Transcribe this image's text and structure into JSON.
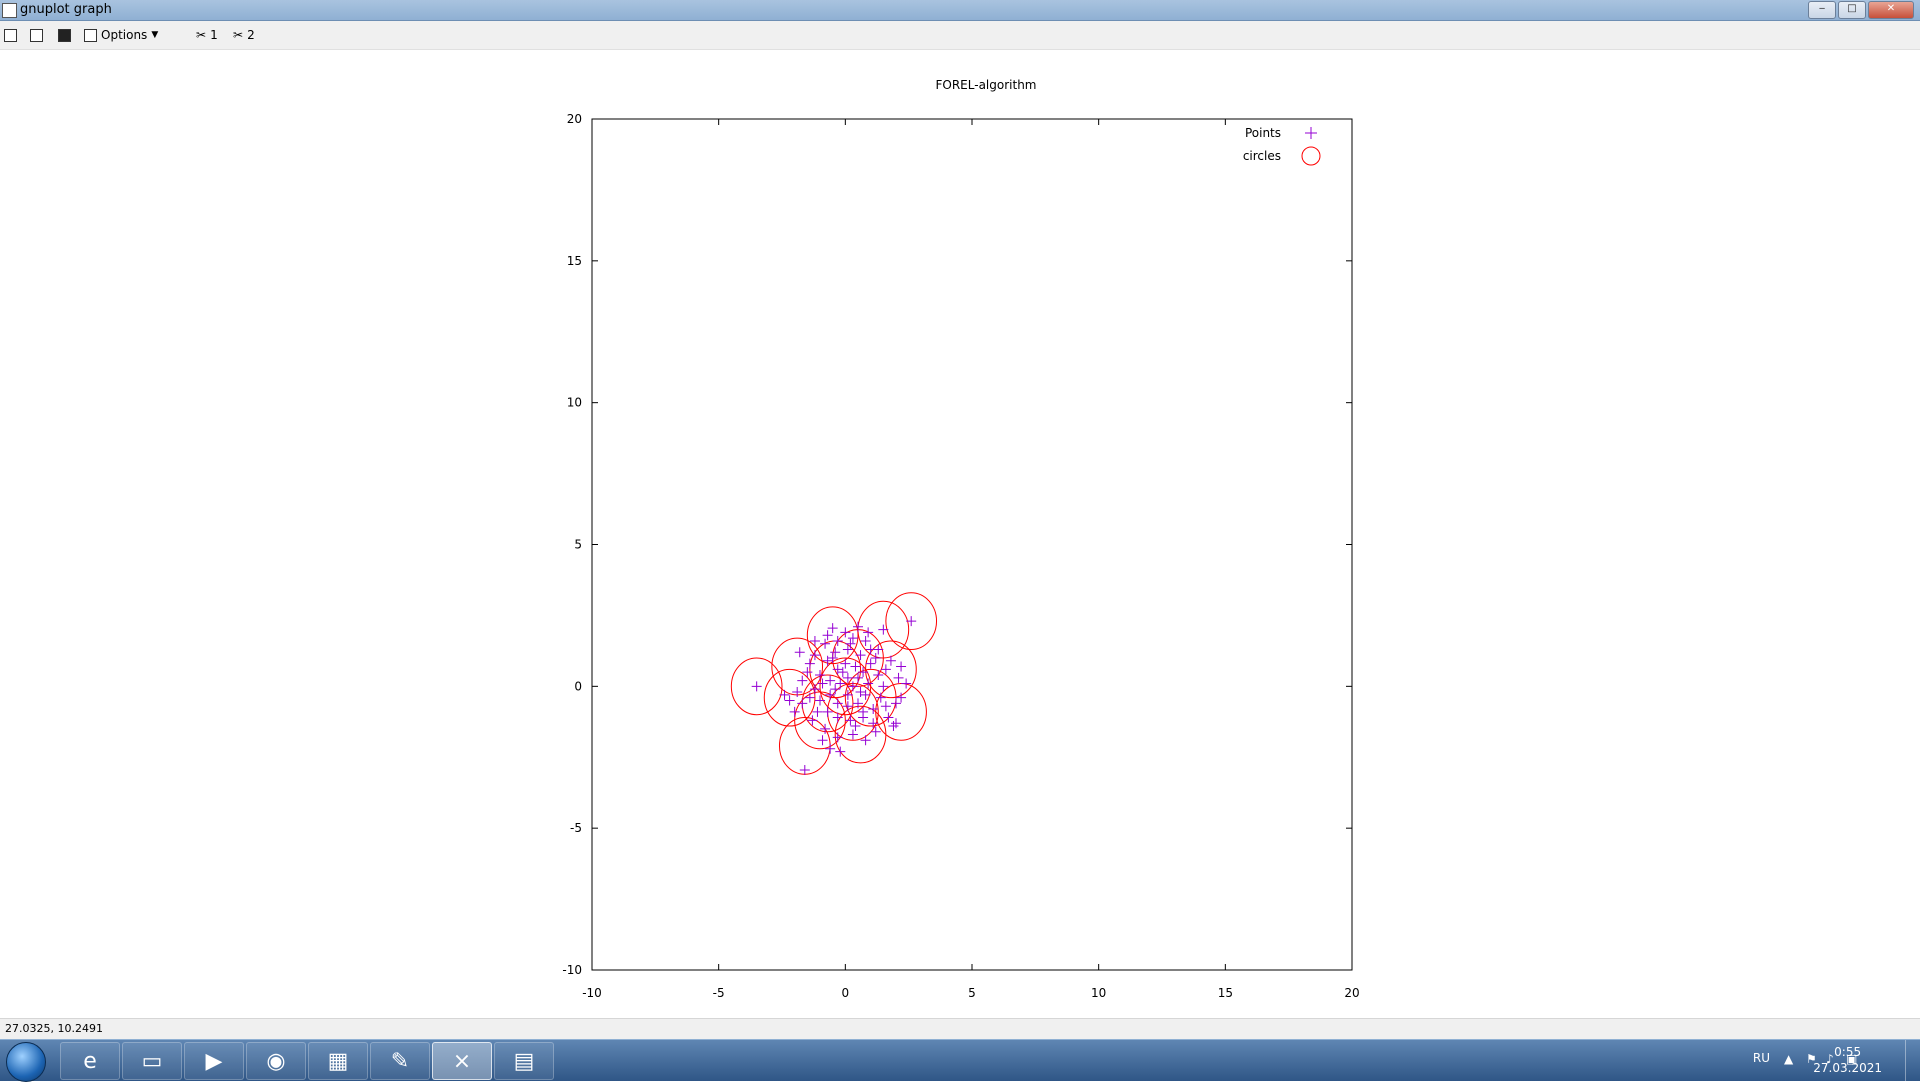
{
  "window": {
    "title": "gnuplot graph",
    "btn_min": "‒",
    "btn_max": "□",
    "btn_close": "✕"
  },
  "toolbar": {
    "options_label": "Options",
    "plot1_label": "1",
    "plot2_label": "2"
  },
  "status": {
    "coords": "27.0325,  10.2491"
  },
  "taskbar": {
    "apps": [
      "start",
      "internet-explorer",
      "file-explorer",
      "media-player",
      "chrome",
      "winrar",
      "editor",
      "gnuplot",
      "console"
    ],
    "lang": "RU",
    "time": "0:55",
    "date": "27.03.2021"
  },
  "chart_data": {
    "type": "scatter",
    "title": "FOREL-algorithm",
    "xlabel": "",
    "ylabel": "",
    "xlim": [
      -10,
      20
    ],
    "ylim": [
      -10,
      20
    ],
    "xticks": [
      -10,
      -5,
      0,
      5,
      10,
      15,
      20
    ],
    "yticks": [
      -10,
      -5,
      0,
      5,
      10,
      15,
      20
    ],
    "grid": false,
    "legend_position": "top-right",
    "series": [
      {
        "name": "Points",
        "marker": "plus",
        "color": "#9400d3",
        "points": [
          [
            -3.5,
            0.0
          ],
          [
            -1.6,
            -2.95
          ],
          [
            2.6,
            2.3
          ],
          [
            1.5,
            2.0
          ],
          [
            -0.5,
            2.05
          ],
          [
            0.0,
            1.9
          ],
          [
            -2.2,
            -0.5
          ],
          [
            -2.4,
            -0.3
          ],
          [
            -1.7,
            0.2
          ],
          [
            -1.4,
            0.8
          ],
          [
            -1.2,
            1.1
          ],
          [
            -0.8,
            1.5
          ],
          [
            -0.3,
            1.6
          ],
          [
            0.3,
            1.7
          ],
          [
            0.8,
            1.6
          ],
          [
            1.3,
            1.3
          ],
          [
            1.8,
            0.9
          ],
          [
            2.2,
            0.7
          ],
          [
            2.4,
            0.1
          ],
          [
            2.2,
            -0.4
          ],
          [
            2.0,
            -0.6
          ],
          [
            1.7,
            -1.1
          ],
          [
            1.2,
            -1.6
          ],
          [
            0.8,
            -1.9
          ],
          [
            0.3,
            -1.7
          ],
          [
            -0.3,
            -1.8
          ],
          [
            -0.8,
            -1.5
          ],
          [
            -1.3,
            -1.2
          ],
          [
            -1.7,
            -0.6
          ],
          [
            -1.9,
            -0.2
          ],
          [
            -1.0,
            0.4
          ],
          [
            -0.7,
            0.9
          ],
          [
            -0.4,
            1.2
          ],
          [
            0.1,
            1.3
          ],
          [
            0.6,
            1.1
          ],
          [
            1.0,
            0.8
          ],
          [
            1.3,
            0.4
          ],
          [
            1.5,
            0.0
          ],
          [
            1.4,
            -0.4
          ],
          [
            1.1,
            -0.8
          ],
          [
            0.7,
            -1.1
          ],
          [
            0.2,
            -1.2
          ],
          [
            -0.3,
            -1.1
          ],
          [
            -0.7,
            -0.9
          ],
          [
            -1.0,
            -0.5
          ],
          [
            -1.2,
            -0.1
          ],
          [
            -0.6,
            0.2
          ],
          [
            -0.3,
            0.6
          ],
          [
            0.0,
            0.8
          ],
          [
            0.4,
            0.7
          ],
          [
            0.7,
            0.5
          ],
          [
            0.9,
            0.1
          ],
          [
            0.8,
            -0.3
          ],
          [
            0.5,
            -0.6
          ],
          [
            0.1,
            -0.7
          ],
          [
            -0.3,
            -0.6
          ],
          [
            -0.6,
            -0.3
          ],
          [
            -0.2,
            0.1
          ],
          [
            0.1,
            0.3
          ],
          [
            0.3,
            0.0
          ],
          [
            0.1,
            -0.3
          ],
          [
            -0.4,
            -0.1
          ],
          [
            0.5,
            0.3
          ],
          [
            -0.1,
            0.5
          ],
          [
            -0.9,
            0.1
          ],
          [
            0.6,
            -0.2
          ],
          [
            1.0,
            1.3
          ],
          [
            -1.1,
            -0.9
          ],
          [
            -0.5,
            1.0
          ],
          [
            0.4,
            -1.4
          ],
          [
            1.6,
            -0.7
          ],
          [
            -1.5,
            0.5
          ],
          [
            2.1,
            0.3
          ],
          [
            -2.0,
            -0.9
          ],
          [
            0.9,
            1.9
          ],
          [
            -0.6,
            -2.2
          ],
          [
            1.9,
            -1.4
          ],
          [
            -1.8,
            1.2
          ],
          [
            2.0,
            -1.3
          ],
          [
            1.1,
            -1.3
          ],
          [
            -0.2,
            -2.3
          ],
          [
            0.5,
            2.1
          ],
          [
            -1.2,
            1.6
          ],
          [
            1.2,
            1.0
          ],
          [
            -0.9,
            -1.9
          ],
          [
            0.2,
            1.5
          ],
          [
            -1.4,
            -0.4
          ],
          [
            0.7,
            -0.9
          ],
          [
            1.6,
            0.6
          ],
          [
            -0.7,
            1.8
          ]
        ]
      },
      {
        "name": "circles",
        "marker": "circle",
        "color": "#ff0000",
        "radius": 1.0,
        "centers": [
          [
            -3.5,
            0.0
          ],
          [
            -1.6,
            -2.1
          ],
          [
            2.6,
            2.3
          ],
          [
            1.5,
            2.0
          ],
          [
            -0.5,
            1.8
          ],
          [
            0.6,
            -1.7
          ],
          [
            2.2,
            -0.9
          ],
          [
            1.8,
            0.6
          ],
          [
            -2.2,
            -0.4
          ],
          [
            -1.9,
            0.7
          ],
          [
            -1.0,
            -1.2
          ],
          [
            0.0,
            0.0
          ],
          [
            0.5,
            1.0
          ],
          [
            -0.4,
            0.6
          ],
          [
            1.0,
            -0.4
          ],
          [
            -0.7,
            -0.6
          ],
          [
            0.3,
            -0.9
          ]
        ]
      }
    ]
  }
}
